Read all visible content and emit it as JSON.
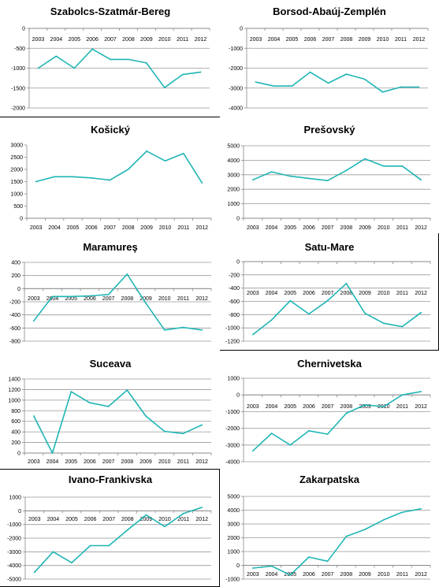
{
  "style": {
    "line_color": "#1fb5b5",
    "grid_color": "#999999",
    "axis_color": "#888888",
    "text_color": "#000000"
  },
  "chart_data": [
    {
      "type": "line",
      "title": "Szabolcs-Szatmár-Bereg",
      "categories": [
        "2003",
        "2004",
        "2005",
        "2006",
        "2007",
        "2008",
        "2009",
        "2010",
        "2011",
        "2012"
      ],
      "values": [
        -1000,
        -700,
        -1000,
        -520,
        -780,
        -780,
        -870,
        -1490,
        -1160,
        -1100
      ],
      "ylim": [
        -2000,
        0
      ],
      "yticks": [
        0,
        -500,
        -1000,
        -1500,
        -2000
      ],
      "ytick_labels": [
        "0",
        "-500",
        "-1000",
        "-1500",
        "-2000"
      ],
      "xaxis_at": 0,
      "grid": true
    },
    {
      "type": "line",
      "title": "Borsod-Abaúj-Zemplén",
      "categories": [
        "2003",
        "2004",
        "2005",
        "2006",
        "2007",
        "2008",
        "2009",
        "2010",
        "2011",
        "2012"
      ],
      "values": [
        -2700,
        -2900,
        -2900,
        -2200,
        -2750,
        -2300,
        -2550,
        -3200,
        -2950,
        -2950
      ],
      "ylim": [
        -4000,
        0
      ],
      "yticks": [
        0,
        -1000,
        -2000,
        -3000,
        -4000
      ],
      "ytick_labels": [
        "0",
        "-1000",
        "-2000",
        "-3000",
        "-4000"
      ],
      "xaxis_at": 0,
      "grid": true
    },
    {
      "type": "line",
      "title": "Košický",
      "categories": [
        "2003",
        "2004",
        "2005",
        "2006",
        "2007",
        "2008",
        "2009",
        "2010",
        "2011",
        "2012"
      ],
      "values": [
        1500,
        1700,
        1700,
        1650,
        1560,
        2000,
        2750,
        2350,
        2650,
        1450
      ],
      "ylim": [
        0,
        3000
      ],
      "yticks": [
        0,
        500,
        1000,
        1500,
        2000,
        2500,
        3000
      ],
      "ytick_labels": [
        "0",
        "500",
        "1000",
        "1500",
        "2000",
        "2500",
        "3000"
      ],
      "xaxis_at": 0,
      "grid": false
    },
    {
      "type": "line",
      "title": "Prešovský",
      "categories": [
        "2003",
        "2004",
        "2005",
        "2006",
        "2007",
        "2008",
        "2009",
        "2010",
        "2011",
        "2012"
      ],
      "values": [
        2650,
        3200,
        2900,
        2750,
        2600,
        3300,
        4100,
        3600,
        3600,
        2650
      ],
      "ylim": [
        0,
        5000
      ],
      "yticks": [
        0,
        1000,
        2000,
        3000,
        4000,
        5000
      ],
      "ytick_labels": [
        "0",
        "1000",
        "2000",
        "3000",
        "4000",
        "5000"
      ],
      "xaxis_at": 0,
      "grid": true
    },
    {
      "type": "line",
      "title": "Maramureş",
      "categories": [
        "2003",
        "2004",
        "2005",
        "2006",
        "2007",
        "2008",
        "2009",
        "2010",
        "2011",
        "2012"
      ],
      "values": [
        -490,
        -120,
        -120,
        -110,
        -90,
        220,
        -220,
        -630,
        -590,
        -630
      ],
      "ylim": [
        -800,
        400
      ],
      "yticks": [
        400,
        200,
        0,
        -200,
        -400,
        -600,
        -800
      ],
      "ytick_labels": [
        "400",
        "200",
        "0",
        "-200",
        "-400",
        "-600",
        "-800"
      ],
      "xaxis_at": 0,
      "grid": true
    },
    {
      "type": "line",
      "title": "Satu-Mare",
      "categories": [
        "2003",
        "2004",
        "2005",
        "2006",
        "2007",
        "2008",
        "2009",
        "2010",
        "2011",
        "2012"
      ],
      "values": [
        -1100,
        -880,
        -590,
        -790,
        -590,
        -330,
        -780,
        -930,
        -980,
        -770
      ],
      "ylim": [
        -1200,
        0
      ],
      "yticks": [
        0,
        -200,
        -400,
        -600,
        -800,
        -1000,
        -1200
      ],
      "ytick_labels": [
        "0",
        "-200",
        "-400",
        "-600",
        "-800",
        "-1000",
        "-1200"
      ],
      "xaxis_at": 0,
      "grid": true
    },
    {
      "type": "line",
      "title": "Suceava",
      "categories": [
        "2003",
        "2004",
        "2005",
        "2006",
        "2007",
        "2008",
        "2009",
        "2010",
        "2011",
        "2012"
      ],
      "values": [
        700,
        0,
        1160,
        950,
        880,
        1190,
        700,
        410,
        370,
        530
      ],
      "ylim": [
        0,
        1400
      ],
      "yticks": [
        0,
        200,
        400,
        600,
        800,
        1000,
        1200,
        1400
      ],
      "ytick_labels": [
        "0",
        "200",
        "400",
        "600",
        "800",
        "1000",
        "1200",
        "1400"
      ],
      "xaxis_at": 0,
      "grid": true
    },
    {
      "type": "line",
      "title": "Chernivetska",
      "categories": [
        "2003",
        "2004",
        "2005",
        "2006",
        "2007",
        "2008",
        "2009",
        "2010",
        "2011",
        "2012"
      ],
      "values": [
        -3350,
        -2300,
        -3000,
        -2150,
        -2350,
        -1100,
        -600,
        -700,
        0,
        200
      ],
      "ylim": [
        -4000,
        1000
      ],
      "yticks": [
        1000,
        0,
        -1000,
        -2000,
        -3000,
        -4000
      ],
      "ytick_labels": [
        "1000",
        "0",
        "-1000",
        "-2000",
        "-3000",
        "-4000"
      ],
      "xaxis_at": 0,
      "grid": true
    },
    {
      "type": "line",
      "title": "Ivano-Frankivska",
      "categories": [
        "2003",
        "2004",
        "2005",
        "2006",
        "2007",
        "2008",
        "2009",
        "2010",
        "2011",
        "2012"
      ],
      "values": [
        -4500,
        -3000,
        -3800,
        -2550,
        -2550,
        -1400,
        -300,
        -1150,
        -200,
        250
      ],
      "ylim": [
        -5000,
        1000
      ],
      "yticks": [
        1000,
        0,
        -1000,
        -2000,
        -3000,
        -4000,
        -5000
      ],
      "ytick_labels": [
        "1000",
        "0",
        "-1000",
        "-2000",
        "-3000",
        "-4000",
        "-5000"
      ],
      "xaxis_at": 0,
      "grid": true
    },
    {
      "type": "line",
      "title": "Zakarpatska",
      "categories": [
        "2003",
        "2004",
        "2005",
        "2006",
        "2007",
        "2008",
        "2009",
        "2010",
        "2011",
        "2012"
      ],
      "values": [
        -200,
        -50,
        -700,
        600,
        300,
        2100,
        2600,
        3300,
        3850,
        4100
      ],
      "ylim": [
        -1000,
        5000
      ],
      "yticks": [
        5000,
        4000,
        3000,
        2000,
        1000,
        0,
        -1000
      ],
      "ytick_labels": [
        "5000",
        "4000",
        "3000",
        "2000",
        "1000",
        "0",
        "-1000"
      ],
      "xaxis_at": 0,
      "grid": true
    }
  ]
}
